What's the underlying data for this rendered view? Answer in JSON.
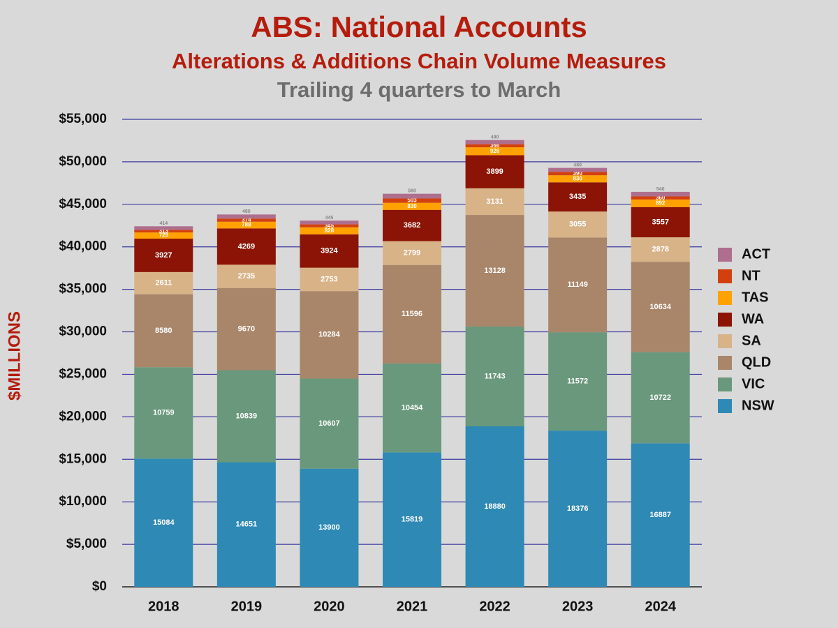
{
  "chart_data": {
    "type": "stacked_bar",
    "title": "ABS: National Accounts",
    "subtitle": "Alterations & Additions Chain Volume Measures",
    "subtitle2": "Trailing 4 quarters to March",
    "y_label": "$MILLIONS",
    "categories": [
      "2018",
      "2019",
      "2020",
      "2021",
      "2022",
      "2023",
      "2024"
    ],
    "series": [
      {
        "name": "NSW",
        "color": "#2e89b4",
        "values": [
          15084,
          14651,
          13900,
          15819,
          18880,
          18376,
          16887
        ]
      },
      {
        "name": "VIC",
        "color": "#6a987c",
        "values": [
          10759,
          10839,
          10607,
          10454,
          11743,
          11572,
          10722
        ]
      },
      {
        "name": "QLD",
        "color": "#a9866a",
        "values": [
          8580,
          9670,
          10284,
          11596,
          13128,
          11149,
          10634
        ]
      },
      {
        "name": "SA",
        "color": "#d8b388",
        "values": [
          2611,
          2735,
          2753,
          2799,
          3131,
          3055,
          2878
        ]
      },
      {
        "name": "WA",
        "color": "#8c1406",
        "values": [
          3927,
          4269,
          3924,
          3682,
          3899,
          3435,
          3557
        ]
      },
      {
        "name": "TAS",
        "color": "#ffa200",
        "values": [
          729,
          788,
          828,
          830,
          926,
          830,
          892
        ]
      },
      {
        "name": "NT",
        "color": "#d3400f",
        "values": [
          313,
          374,
          345,
          503,
          366,
          390,
          360
        ]
      },
      {
        "name": "ACT",
        "color": "#ae6f8e",
        "values": [
          414,
          480,
          445,
          560,
          490,
          480,
          540
        ]
      }
    ],
    "ylim": [
      0,
      55000
    ],
    "yticks": [
      {
        "value": 0,
        "label": "$0"
      },
      {
        "value": 5000,
        "label": "$5,000"
      },
      {
        "value": 10000,
        "label": "$10,000"
      },
      {
        "value": 15000,
        "label": "$15,000"
      },
      {
        "value": 20000,
        "label": "$20,000"
      },
      {
        "value": 25000,
        "label": "$25,000"
      },
      {
        "value": 30000,
        "label": "$30,000"
      },
      {
        "value": 35000,
        "label": "$35,000"
      },
      {
        "value": 40000,
        "label": "$40,000"
      },
      {
        "value": 45000,
        "label": "$45,000"
      },
      {
        "value": 50000,
        "label": "$50,000"
      },
      {
        "value": 55000,
        "label": "$55,000"
      }
    ],
    "grid": true,
    "legend": "right"
  }
}
